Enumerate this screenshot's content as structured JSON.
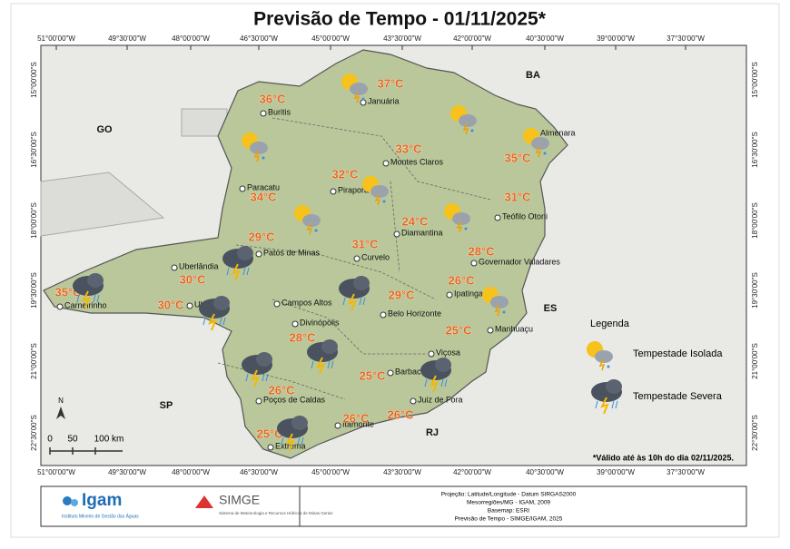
{
  "title": "Previsão de Tempo - 01/11/2025*",
  "longitudes": [
    "51°00'00\"W",
    "49°30'00\"W",
    "48°00'00\"W",
    "46°30'00\"W",
    "45°00'00\"W",
    "43°30'00\"W",
    "42°00'00\"W",
    "40°30'00\"W",
    "39°00'00\"W",
    "37°30'00\"W"
  ],
  "latitudes": [
    "15°00'00\"S",
    "16°30'00\"S",
    "18°00'00\"S",
    "19°30'00\"S",
    "21°00'00\"S",
    "22°30'00\"S"
  ],
  "states": [
    "GO",
    "BA",
    "ES",
    "SP",
    "RJ"
  ],
  "cities": [
    {
      "name": "Buritis",
      "temp": "36°C"
    },
    {
      "name": "Januária",
      "temp": "37°C"
    },
    {
      "name": "Montes Claros",
      "temp": "33°C"
    },
    {
      "name": "Almenara",
      "temp": "35°C"
    },
    {
      "name": "Paracatu",
      "temp": "34°C"
    },
    {
      "name": "Pirapora",
      "temp": "32°C"
    },
    {
      "name": "Teófilo Otoni",
      "temp": "31°C"
    },
    {
      "name": "Diamantina",
      "temp": "24°C"
    },
    {
      "name": "Patos de Minas",
      "temp": "29°C"
    },
    {
      "name": "Curvelo",
      "temp": "31°C"
    },
    {
      "name": "Governador Valadares",
      "temp": "28°C"
    },
    {
      "name": "Uberlândia",
      "temp": "30°C"
    },
    {
      "name": "Carneirinho",
      "temp": "35°C"
    },
    {
      "name": "Uberaba",
      "temp": "30°C"
    },
    {
      "name": "Ipatinga",
      "temp": "26°C"
    },
    {
      "name": "Campos Altos"
    },
    {
      "name": "Belo Horizonte",
      "temp": "29°C"
    },
    {
      "name": "Divinópolis",
      "temp": "28°C"
    },
    {
      "name": "Manhuaçu",
      "temp": "25°C"
    },
    {
      "name": "Viçosa"
    },
    {
      "name": "Barbacena",
      "temp": "25°C"
    },
    {
      "name": "Poços de Caldas",
      "temp": "26°C"
    },
    {
      "name": "Juiz de Fora",
      "temp": "26°C"
    },
    {
      "name": "Itamonte",
      "temp": "26°C"
    },
    {
      "name": "Extrema",
      "temp": "25°C"
    }
  ],
  "legend": {
    "title": "Legenda",
    "items": [
      "Tempestade Isolada",
      "Tempestade Severa"
    ]
  },
  "scale": [
    "0",
    "50",
    "100 km"
  ],
  "north": "N",
  "note": "*Válido até às 10h do dia 02/11/2025.",
  "footer": {
    "igam": "Igam",
    "igam_sub": "Instituto Mineiro de Gestão das Águas",
    "simge": "SIMGE",
    "simge_sub": "Sistema de Meteorologia e Recursos Hídricos de Minas Gerais",
    "credits": [
      "Projeção: Latitude/Longitude - Datum SIRGAS2000",
      "Mesorregiões/MG - IGAM, 2009",
      "Basemap: ESRI",
      "Previsão de Tempo - SIMGE/IGAM, 2025"
    ]
  }
}
